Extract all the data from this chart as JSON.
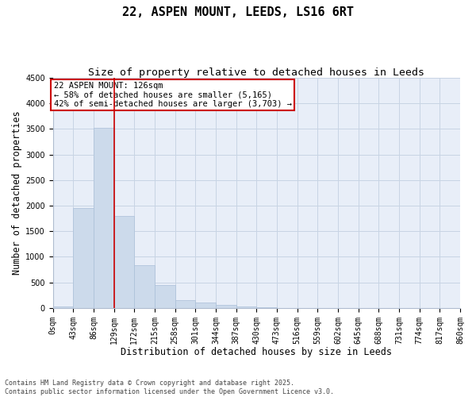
{
  "title": "22, ASPEN MOUNT, LEEDS, LS16 6RT",
  "subtitle": "Size of property relative to detached houses in Leeds",
  "xlabel": "Distribution of detached houses by size in Leeds",
  "ylabel": "Number of detached properties",
  "footnote": "Contains HM Land Registry data © Crown copyright and database right 2025.\nContains public sector information licensed under the Open Government Licence v3.0.",
  "bar_values": [
    30,
    1950,
    3520,
    1800,
    840,
    450,
    155,
    100,
    60,
    30,
    10,
    0,
    0,
    0,
    0,
    0,
    0,
    0,
    0,
    0
  ],
  "bin_edges": [
    0,
    43,
    86,
    129,
    172,
    215,
    258,
    301,
    344,
    387,
    430,
    473,
    516,
    559,
    602,
    645,
    688,
    731,
    774,
    817,
    860
  ],
  "bar_color": "#ccdaeb",
  "bar_edgecolor": "#aabfd8",
  "grid_color": "#c8d4e4",
  "background_color": "#e8eef8",
  "vline_x": 129,
  "vline_color": "#cc0000",
  "ylim": [
    0,
    4500
  ],
  "yticks": [
    0,
    500,
    1000,
    1500,
    2000,
    2500,
    3000,
    3500,
    4000,
    4500
  ],
  "annotation_text": "22 ASPEN MOUNT: 126sqm\n← 58% of detached houses are smaller (5,165)\n42% of semi-detached houses are larger (3,703) →",
  "annotation_box_color": "#ffffff",
  "annotation_box_edgecolor": "#cc0000",
  "title_fontsize": 11,
  "subtitle_fontsize": 9.5,
  "tick_fontsize": 7,
  "label_fontsize": 8.5,
  "annotation_fontsize": 7.5,
  "footnote_fontsize": 6
}
